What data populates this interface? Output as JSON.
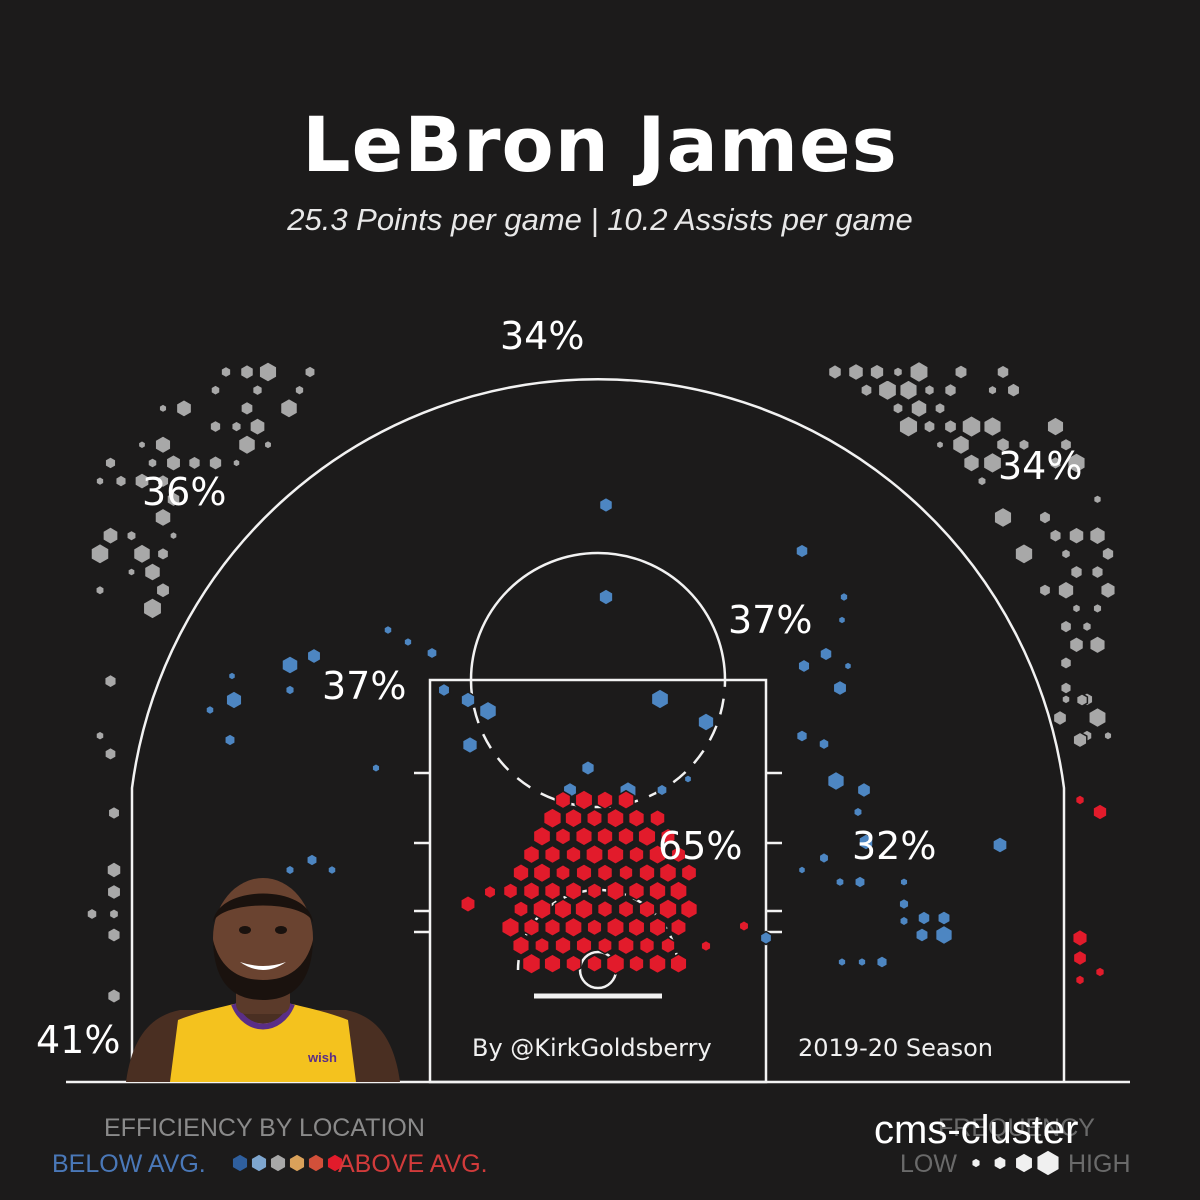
{
  "header": {
    "title": "LeBron James",
    "subtitle": "25.3 Points per game | 10.2 Assists per game"
  },
  "credits": {
    "author": "By @KirkGoldsberry",
    "season": "2019-20 Season"
  },
  "legend": {
    "efficiency_title": "EFFICIENCY BY LOCATION",
    "below_label": "BELOW AVG.",
    "above_label": "ABOVE AVG.",
    "frequency_title": "FREQUENCY",
    "low_label": "LOW",
    "high_label": "HIGH",
    "efficiency_colors": [
      "#2f5f9e",
      "#7ea6cf",
      "#a8a8a8",
      "#d9a15a",
      "#d2503a",
      "#e21b2b"
    ]
  },
  "watermark": "cms-cluster",
  "player_image": "lebron-james-headshot",
  "colors": {
    "background": "#1c1b1b",
    "above_avg": "#e21b2b",
    "below_avg": "#4d86c2",
    "average": "#a8a8a8",
    "court_lines": "#f2f2f2"
  },
  "chart_data": {
    "type": "hexbin shot chart",
    "title": "LeBron James",
    "subtitle": "25.3 Points per game | 10.2 Assists per game",
    "zones": [
      {
        "zone": "left corner three",
        "label": "41%",
        "fg_pct": 41,
        "efficiency": "average"
      },
      {
        "zone": "left wing three",
        "label": "36%",
        "fg_pct": 36,
        "efficiency": "average"
      },
      {
        "zone": "top of key three",
        "label": "34%",
        "fg_pct": 34,
        "efficiency": "average"
      },
      {
        "zone": "right wing three",
        "label": "34%",
        "fg_pct": 34,
        "efficiency": "average"
      },
      {
        "zone": "left mid-range",
        "label": "37%",
        "fg_pct": 37,
        "efficiency": "below average"
      },
      {
        "zone": "right top mid-range",
        "label": "37%",
        "fg_pct": 37,
        "efficiency": "below average"
      },
      {
        "zone": "right baseline mid-range",
        "label": "32%",
        "fg_pct": 32,
        "efficiency": "below average"
      },
      {
        "zone": "paint / restricted area",
        "label": "65%",
        "fg_pct": 65,
        "efficiency": "above average"
      }
    ],
    "legend": {
      "efficiency": [
        "BELOW AVG.",
        "ABOVE AVG."
      ],
      "frequency": [
        "LOW",
        "HIGH"
      ]
    }
  }
}
